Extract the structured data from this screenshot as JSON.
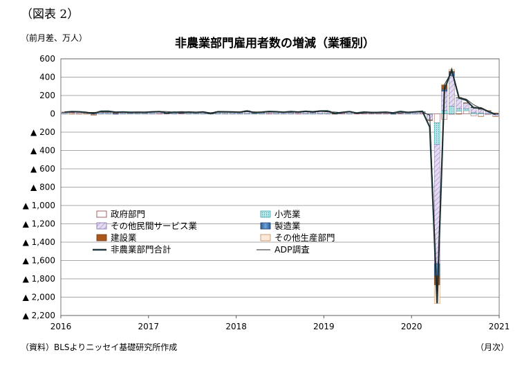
{
  "figure_label": "（図表 2）",
  "unit_label": "（前月差、万人）",
  "source_note": "（資料）BLSよりニッセイ基礎研究所作成",
  "period_label": "（月次）",
  "chart_data": {
    "type": "bar",
    "title": "非農業部門雇用者数の増減（業種別）",
    "ylim": [
      -2200,
      600
    ],
    "yticks": [
      600,
      400,
      200,
      0,
      -200,
      -400,
      -600,
      -800,
      -1000,
      -1200,
      -1400,
      -1600,
      -1800,
      -2000,
      -2200
    ],
    "ytick_labels": [
      "600",
      "400",
      "200",
      "0",
      "▲ 200",
      "▲ 400",
      "▲ 600",
      "▲ 800",
      "▲ 1,000",
      "▲ 1,200",
      "▲ 1,400",
      "▲ 1,600",
      "▲ 1,800",
      "▲ 2,000",
      "▲ 2,200"
    ],
    "xtick_labels": [
      "2016",
      "2017",
      "2018",
      "2019",
      "2020",
      "2021"
    ],
    "grid": true,
    "legend_position": "center-left",
    "categories": [
      "2016-01",
      "2016-02",
      "2016-03",
      "2016-04",
      "2016-05",
      "2016-06",
      "2016-07",
      "2016-08",
      "2016-09",
      "2016-10",
      "2016-11",
      "2016-12",
      "2017-01",
      "2017-02",
      "2017-03",
      "2017-04",
      "2017-05",
      "2017-06",
      "2017-07",
      "2017-08",
      "2017-09",
      "2017-10",
      "2017-11",
      "2017-12",
      "2018-01",
      "2018-02",
      "2018-03",
      "2018-04",
      "2018-05",
      "2018-06",
      "2018-07",
      "2018-08",
      "2018-09",
      "2018-10",
      "2018-11",
      "2018-12",
      "2019-01",
      "2019-02",
      "2019-03",
      "2019-04",
      "2019-05",
      "2019-06",
      "2019-07",
      "2019-08",
      "2019-09",
      "2019-10",
      "2019-11",
      "2019-12",
      "2020-01",
      "2020-02",
      "2020-03",
      "2020-04",
      "2020-05",
      "2020-06",
      "2020-07",
      "2020-08",
      "2020-09",
      "2020-10",
      "2020-11",
      "2020-12"
    ],
    "series": [
      {
        "name": "政府部門",
        "style": "gov",
        "color": "#ffffff",
        "values": [
          1,
          1,
          1,
          1,
          1,
          1,
          1,
          1,
          1,
          1,
          1,
          1,
          1,
          1,
          1,
          1,
          1,
          1,
          1,
          1,
          1,
          1,
          1,
          1,
          1,
          1,
          1,
          1,
          1,
          1,
          1,
          1,
          1,
          1,
          1,
          1,
          1,
          1,
          1,
          1,
          1,
          1,
          1,
          1,
          1,
          1,
          1,
          1,
          1,
          1,
          -2,
          -98,
          -59,
          -5,
          30,
          34,
          -22,
          -27,
          -10,
          -4
        ]
      },
      {
        "name": "小売業",
        "style": "retail",
        "color": "#a8dde0",
        "values": [
          1,
          1,
          1,
          1,
          0,
          1,
          1,
          0,
          1,
          1,
          1,
          1,
          1,
          0,
          0,
          1,
          0,
          1,
          1,
          1,
          0,
          1,
          1,
          1,
          1,
          1,
          1,
          1,
          0,
          1,
          1,
          1,
          0,
          1,
          1,
          1,
          1,
          0,
          0,
          1,
          0,
          0,
          0,
          0,
          0,
          0,
          0,
          1,
          1,
          0,
          -4,
          -237,
          37,
          85,
          27,
          22,
          14,
          10,
          3,
          -4
        ]
      },
      {
        "name": "その他民間サービス業",
        "style": "svc",
        "color": "#d8cdea",
        "values": [
          14,
          14,
          16,
          10,
          -10,
          22,
          18,
          10,
          14,
          10,
          12,
          12,
          16,
          17,
          6,
          14,
          10,
          15,
          12,
          14,
          1,
          18,
          16,
          13,
          12,
          24,
          8,
          12,
          19,
          16,
          12,
          16,
          14,
          20,
          13,
          24,
          24,
          3,
          13,
          20,
          7,
          13,
          13,
          14,
          16,
          12,
          20,
          16,
          18,
          20,
          -60,
          -1300,
          210,
          330,
          115,
          60,
          52,
          40,
          28,
          -20
        ]
      },
      {
        "name": "製造業",
        "style": "mfg",
        "color": "#4f81bd",
        "values": [
          1,
          0,
          0,
          0,
          -1,
          1,
          1,
          -1,
          0,
          1,
          0,
          1,
          1,
          2,
          1,
          1,
          0,
          1,
          2,
          2,
          1,
          2,
          3,
          3,
          2,
          3,
          2,
          2,
          2,
          3,
          3,
          2,
          2,
          3,
          3,
          3,
          1,
          0,
          0,
          0,
          0,
          2,
          1,
          0,
          0,
          -4,
          5,
          0,
          0,
          1,
          -2,
          -133,
          22,
          36,
          4,
          3,
          6,
          3,
          3,
          3
        ]
      },
      {
        "name": "建設業",
        "style": "cons",
        "color": "#a9571a",
        "values": [
          2,
          2,
          3,
          1,
          -1,
          1,
          2,
          1,
          1,
          1,
          1,
          1,
          3,
          4,
          0,
          1,
          1,
          1,
          0,
          2,
          0,
          2,
          2,
          3,
          2,
          5,
          1,
          2,
          3,
          1,
          2,
          3,
          2,
          3,
          3,
          3,
          4,
          -2,
          1,
          3,
          0,
          2,
          0,
          1,
          1,
          1,
          1,
          0,
          4,
          0,
          -3,
          -100,
          46,
          15,
          -1,
          1,
          2,
          4,
          1,
          5
        ]
      },
      {
        "name": "その他生産部門",
        "style": "oth",
        "color": "#fde9d9",
        "values": [
          0,
          -1,
          -1,
          -1,
          -1,
          0,
          0,
          0,
          0,
          0,
          0,
          0,
          0,
          0,
          0,
          0,
          0,
          0,
          0,
          0,
          0,
          0,
          0,
          0,
          0,
          0,
          0,
          0,
          0,
          0,
          0,
          0,
          0,
          0,
          0,
          0,
          0,
          0,
          0,
          0,
          0,
          0,
          0,
          0,
          0,
          0,
          0,
          0,
          0,
          0,
          -1,
          -200,
          5,
          20,
          5,
          0,
          0,
          -3,
          2,
          -2
        ]
      }
    ],
    "lines": [
      {
        "name": "非農業部門合計",
        "style": "thick",
        "color": "#1f3b3d",
        "values": [
          17,
          24,
          22,
          15,
          3,
          28,
          29,
          17,
          20,
          16,
          17,
          16,
          21,
          24,
          8,
          18,
          13,
          19,
          15,
          20,
          2,
          23,
          22,
          20,
          17,
          31,
          13,
          18,
          26,
          23,
          17,
          25,
          19,
          27,
          22,
          30,
          31,
          3,
          15,
          24,
          8,
          19,
          14,
          15,
          18,
          10,
          26,
          15,
          21,
          27,
          -144,
          -2068,
          262,
          479,
          173,
          149,
          66,
          64,
          26,
          -6
        ]
      },
      {
        "name": "ADP調査",
        "style": "thin",
        "color": "#222222",
        "values": [
          17,
          19,
          18,
          15,
          15,
          18,
          17,
          18,
          16,
          15,
          18,
          17,
          22,
          26,
          25,
          17,
          25,
          18,
          17,
          23,
          12,
          23,
          19,
          23,
          21,
          24,
          21,
          19,
          18,
          18,
          19,
          16,
          23,
          23,
          19,
          27,
          21,
          19,
          13,
          25,
          3,
          10,
          14,
          17,
          13,
          12,
          10,
          18,
          20,
          18,
          -14,
          -1950,
          320,
          460,
          180,
          160,
          100,
          60,
          25,
          -5
        ]
      }
    ]
  }
}
